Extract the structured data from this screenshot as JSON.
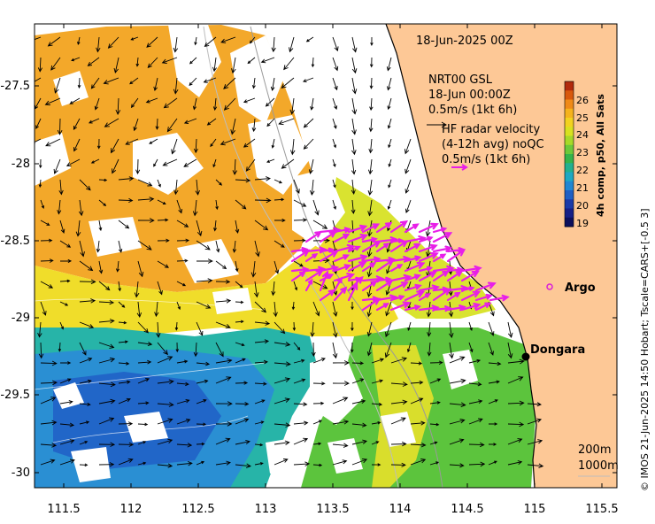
{
  "date_title": "18-Jun-2025 00Z",
  "model": {
    "name": "NRT00 GSL",
    "time": "18-Jun 00:00Z",
    "scale": "0.5m/s (1kt 6h)"
  },
  "hf_radar": {
    "title": "HF radar velocity",
    "avg": "(4-12h avg) noQC",
    "scale": "0.5m/s (1kt 6h)"
  },
  "colorbar": {
    "label": "4h comp, p50, All Sats",
    "ticks": [
      "26",
      "25",
      "24",
      "23",
      "22",
      "21",
      "20",
      "19"
    ],
    "colors": [
      "#b22a0c",
      "#d8590d",
      "#ef8a17",
      "#f5b31c",
      "#f2d21f",
      "#d8e11f",
      "#a7d928",
      "#6cc93a",
      "#35b44b",
      "#22b08f",
      "#1ea8c2",
      "#2187d2",
      "#1f5fc4",
      "#1b3aa8",
      "#161f86",
      "#0c0f5c"
    ]
  },
  "places": {
    "argo": "Argo",
    "dongara": "Dongara"
  },
  "isobaths": [
    "200m",
    "1000m"
  ],
  "side_note": "© IMOS 21-Jun-2025 14:50 Hobart; Tscale=CARS+[-0.5 3]",
  "axes": {
    "x_ticks": [
      "111.5",
      "112",
      "112.5",
      "113",
      "113.5",
      "114",
      "114.5",
      "115",
      "115.5"
    ],
    "y_ticks": [
      "-27.5",
      "-28",
      "-28.5",
      "-29",
      "-29.5",
      "-30"
    ]
  },
  "colors": {
    "land": "#fdc896",
    "coast": "#000000",
    "hf_vector": "#e81ee8",
    "argo": "#d81ed8"
  }
}
